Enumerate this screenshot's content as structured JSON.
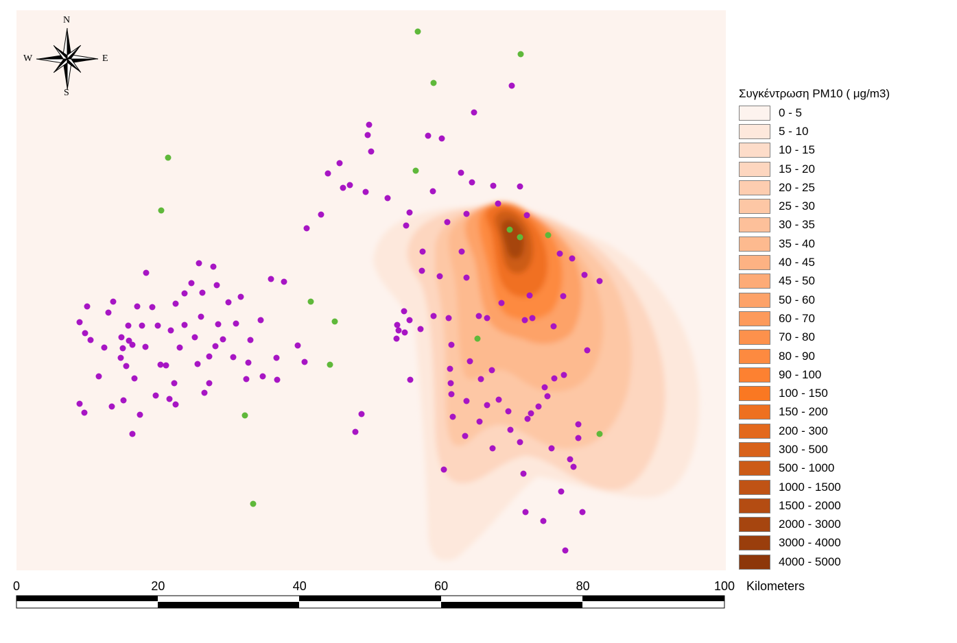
{
  "legend": {
    "title": "Συγκέντρωση PM10   ( μg/m3)",
    "classes": [
      {
        "label": "0 - 5",
        "color": "#fdf3ee"
      },
      {
        "label": "5 - 10",
        "color": "#fde8dc"
      },
      {
        "label": "10 - 15",
        "color": "#fddcc9"
      },
      {
        "label": "15 - 20",
        "color": "#fdd6bf"
      },
      {
        "label": "20 - 25",
        "color": "#fdcdb0"
      },
      {
        "label": "25 - 30",
        "color": "#fdc7a5"
      },
      {
        "label": "30 - 35",
        "color": "#fdc09a"
      },
      {
        "label": "35 - 40",
        "color": "#fdba8f"
      },
      {
        "label": "40 - 45",
        "color": "#fdb283"
      },
      {
        "label": "45 - 50",
        "color": "#fdab77"
      },
      {
        "label": "50 - 60",
        "color": "#fda268"
      },
      {
        "label": "60 - 70",
        "color": "#fd9a5b"
      },
      {
        "label": "70 - 80",
        "color": "#fd914c"
      },
      {
        "label": "80 - 90",
        "color": "#fd8a40"
      },
      {
        "label": "90 - 100",
        "color": "#fd8131"
      },
      {
        "label": "100 - 150",
        "color": "#fa7822"
      },
      {
        "label": "150 - 200",
        "color": "#ee7020"
      },
      {
        "label": "200 - 300",
        "color": "#e3691d"
      },
      {
        "label": "300 - 500",
        "color": "#d8621a"
      },
      {
        "label": "500 - 1000",
        "color": "#cc5b17"
      },
      {
        "label": "1000 - 1500",
        "color": "#c05315"
      },
      {
        "label": "1500 - 2000",
        "color": "#b44c12"
      },
      {
        "label": "2000 - 3000",
        "color": "#a6450f"
      },
      {
        "label": "3000 - 4000",
        "color": "#9a3e0c"
      },
      {
        "label": "4000 - 5000",
        "color": "#8d370a"
      }
    ]
  },
  "compass": {
    "n": "N",
    "s": "S",
    "e": "E",
    "w": "W"
  },
  "scale_bar": {
    "ticks": [
      "0",
      "20",
      "40",
      "60",
      "80",
      "100"
    ],
    "unit": "Kilometers"
  },
  "colors": {
    "background": "#fdf3ee",
    "purple_points": "#a715c4",
    "green_points": "#5fb83a"
  }
}
